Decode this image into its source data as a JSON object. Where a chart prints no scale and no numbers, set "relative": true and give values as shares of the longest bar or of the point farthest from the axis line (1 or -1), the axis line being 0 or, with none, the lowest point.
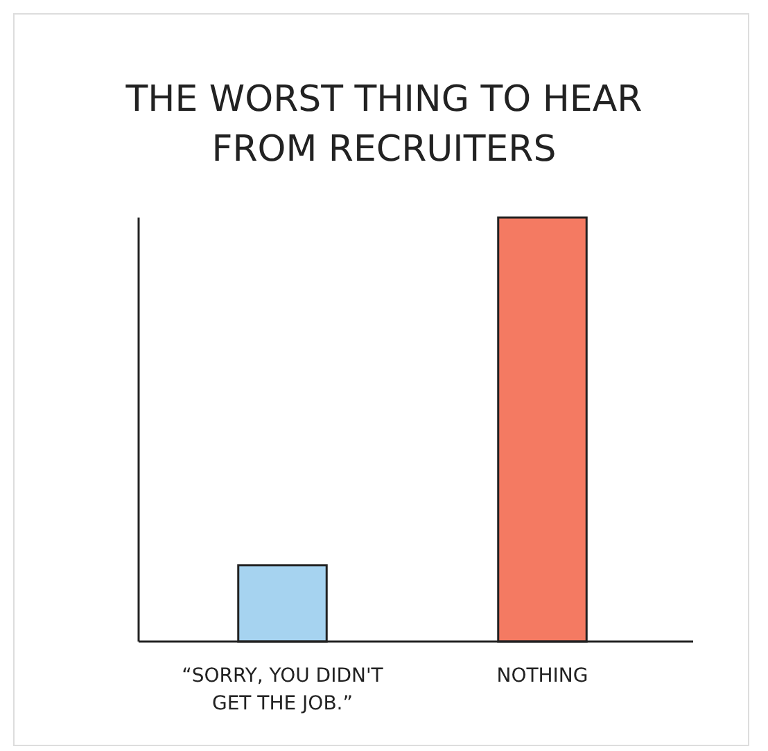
{
  "chart_data": {
    "type": "bar",
    "title": "THE WORST THING TO HEAR FROM RECRUITERS",
    "relative": true,
    "categories": [
      "“SORRY, YOU DIDN'T GET THE JOB.”",
      "NOTHING"
    ],
    "values": [
      0.18,
      1
    ],
    "colors": [
      "#a6d3f0",
      "#f47a62"
    ]
  }
}
